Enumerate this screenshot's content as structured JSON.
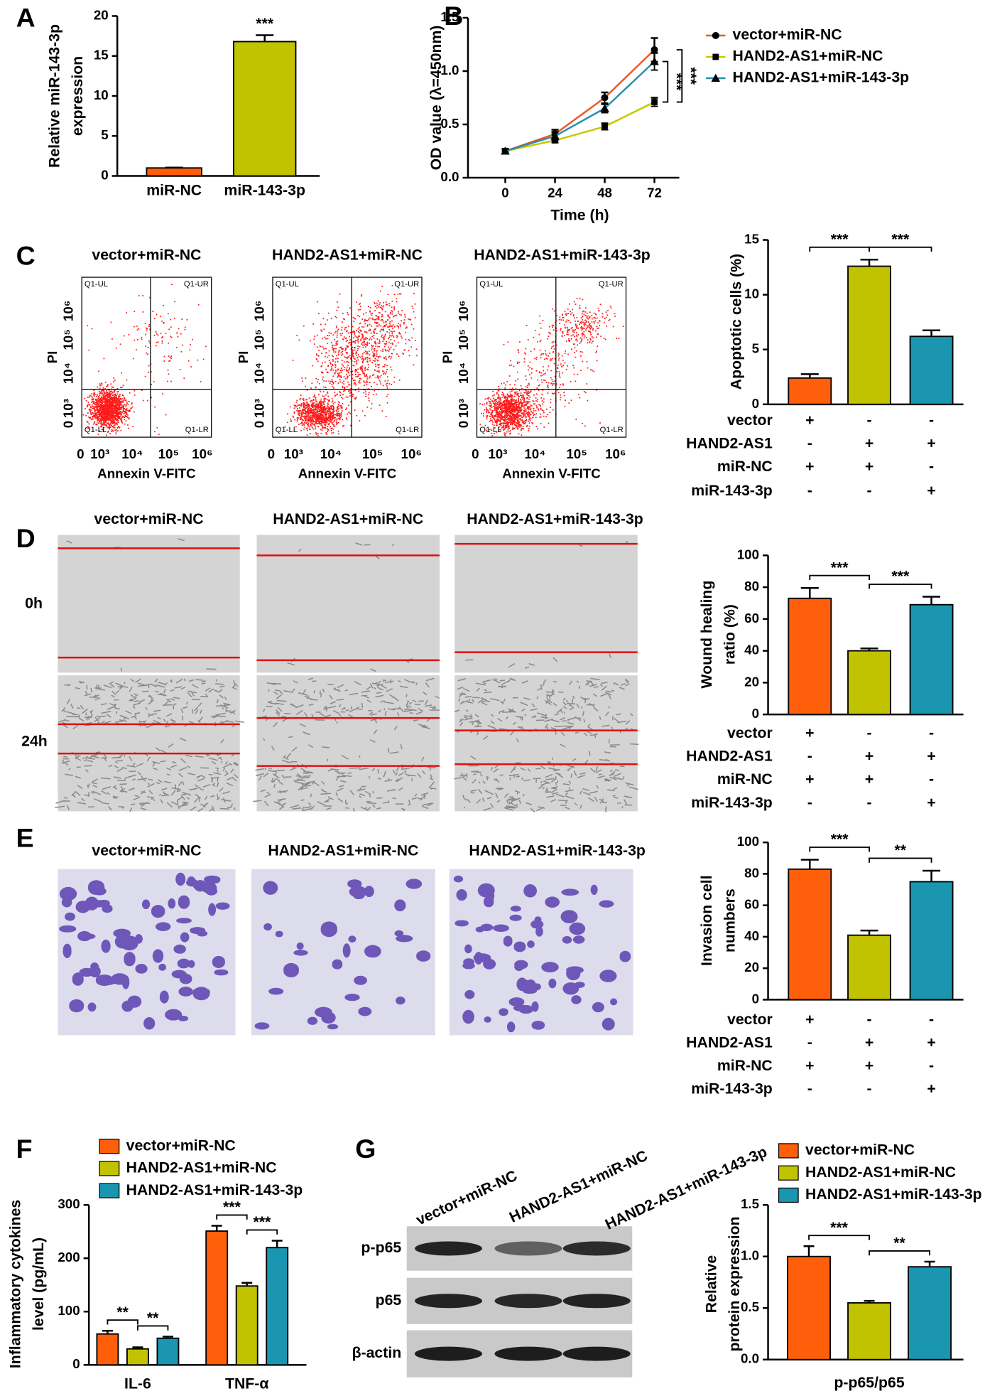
{
  "panel_letters": [
    "A",
    "B",
    "C",
    "D",
    "E",
    "F",
    "G"
  ],
  "flow": {
    "titles": [
      "vector+miR-NC",
      "HAND2-AS1+miR-NC",
      "HAND2-AS1+miR-143-3p"
    ],
    "xlabel": "Annexin V-FITC",
    "ylabel": "PI",
    "tick_labels": [
      "0",
      "10³",
      "10⁴",
      "10⁵",
      "10⁶"
    ],
    "quadrants": [
      "Q1-UL",
      "Q1-UR",
      "Q1-LL",
      "Q1-LR"
    ]
  },
  "wound": {
    "titles": [
      "vector+miR-NC",
      "HAND2-AS1+miR-NC",
      "HAND2-AS1+miR-143-3p"
    ],
    "times": [
      "0h",
      "24h"
    ]
  },
  "invasion": {
    "titles": [
      "vector+miR-NC",
      "HAND2-AS1+miR-NC",
      "HAND2-AS1+miR-143-3p"
    ]
  },
  "blot": {
    "lanes": [
      "vector+miR-NC",
      "HAND2-AS1+miR-NC",
      "HAND2-AS1+miR-143-3p"
    ],
    "rows": [
      "p-p65",
      "p65",
      "β-actin"
    ]
  },
  "chart_data": [
    {
      "type": "bar",
      "ylabel": [
        "Relative miR-143-3p",
        "expression"
      ],
      "categories": [
        "miR-NC",
        "miR-143-3p"
      ],
      "values": [
        1.0,
        16.8
      ],
      "errors": [
        0.05,
        0.8
      ],
      "colors": [
        "#ff5f0a",
        "#c2c300"
      ],
      "ylim": [
        0,
        20
      ],
      "yticks": [
        0,
        5,
        10,
        15,
        20
      ],
      "significance": [
        "***"
      ]
    },
    {
      "type": "line",
      "xlabel": "Time (h)",
      "ylabel": "OD value (λ=450nm)",
      "x": [
        0,
        24,
        48,
        72
      ],
      "xlim": [
        -18,
        84
      ],
      "xticks": [
        0,
        24,
        48,
        72
      ],
      "ylim": [
        0,
        1.5
      ],
      "yticks": [
        {
          "value": 0,
          "label": "0.0"
        },
        {
          "value": 0.5,
          "label": "0.5"
        },
        {
          "value": 1,
          "label": "1.0"
        },
        {
          "value": 1.5,
          "label": "1.5"
        }
      ],
      "series": [
        {
          "name": "vector+miR-NC",
          "color": "#ec5a26",
          "values": [
            0.25,
            0.41,
            0.75,
            1.2
          ],
          "errors": [
            0.02,
            0.04,
            0.05,
            0.11
          ]
        },
        {
          "name": "HAND2-AS1+miR-NC",
          "color": "#c8c800",
          "values": [
            0.25,
            0.35,
            0.48,
            0.71
          ],
          "errors": [
            0.02,
            0.02,
            0.03,
            0.04
          ]
        },
        {
          "name": "HAND2-AS1+miR-143-3p",
          "color": "#2a8fb0",
          "values": [
            0.25,
            0.39,
            0.65,
            1.09
          ],
          "errors": [
            0.02,
            0.04,
            0.04,
            0.08
          ]
        }
      ],
      "significance": [
        "***",
        "***"
      ]
    },
    {
      "type": "bar",
      "ylabel": [
        "Apoptotic cells (%)"
      ],
      "values": [
        2.4,
        12.6,
        6.2
      ],
      "errors": [
        0.35,
        0.6,
        0.55
      ],
      "colors": [
        "#ff5f0a",
        "#c2c300",
        "#1a96b0"
      ],
      "ylim": [
        0,
        15
      ],
      "yticks": [
        0,
        5,
        10,
        15
      ],
      "conditions": {
        "rows": [
          "vector",
          "HAND2-AS1",
          "miR-NC",
          "miR-143-3p"
        ],
        "signs": [
          [
            "+",
            "-",
            "-"
          ],
          [
            "-",
            "+",
            "+"
          ],
          [
            "+",
            "+",
            "-"
          ],
          [
            "-",
            "-",
            "+"
          ]
        ]
      },
      "significance": [
        "***",
        "***"
      ]
    },
    {
      "type": "bar",
      "ylabel": [
        "Wound healing",
        "ratio (%)"
      ],
      "values": [
        73,
        40,
        69
      ],
      "errors": [
        6.5,
        1.5,
        5
      ],
      "colors": [
        "#ff5f0a",
        "#c2c300",
        "#1a96b0"
      ],
      "ylim": [
        0,
        100
      ],
      "yticks": [
        0,
        20,
        40,
        60,
        80,
        100
      ],
      "conditions": {
        "rows": [
          "vector",
          "HAND2-AS1",
          "miR-NC",
          "miR-143-3p"
        ],
        "signs": [
          [
            "+",
            "-",
            "-"
          ],
          [
            "-",
            "+",
            "+"
          ],
          [
            "+",
            "+",
            "-"
          ],
          [
            "-",
            "-",
            "+"
          ]
        ]
      },
      "significance": [
        "***",
        "***"
      ]
    },
    {
      "type": "bar",
      "ylabel": [
        "Invasion cell",
        "numbers"
      ],
      "values": [
        83,
        41,
        75
      ],
      "errors": [
        6,
        3,
        7
      ],
      "colors": [
        "#ff5f0a",
        "#c2c300",
        "#1a96b0"
      ],
      "ylim": [
        0,
        100
      ],
      "yticks": [
        0,
        20,
        40,
        60,
        80,
        100
      ],
      "conditions": {
        "rows": [
          "vector",
          "HAND2-AS1",
          "miR-NC",
          "miR-143-3p"
        ],
        "signs": [
          [
            "+",
            "-",
            "-"
          ],
          [
            "-",
            "+",
            "+"
          ],
          [
            "+",
            "+",
            "-"
          ],
          [
            "-",
            "-",
            "+"
          ]
        ]
      },
      "significance": [
        "***",
        "**"
      ]
    },
    {
      "type": "bar",
      "ylabel": [
        "Inflammatory cytokines",
        "level (pg/mL)"
      ],
      "categories": [
        "IL-6",
        "TNF-α"
      ],
      "ylim": [
        0,
        300
      ],
      "yticks": [
        0,
        100,
        200,
        300
      ],
      "series": [
        {
          "name": "vector+miR-NC",
          "color": "#ff5f0a",
          "values": [
            58,
            251
          ],
          "errors": [
            6,
            10
          ]
        },
        {
          "name": "HAND2-AS1+miR-NC",
          "color": "#c2c300",
          "values": [
            30,
            148
          ],
          "errors": [
            3,
            6
          ]
        },
        {
          "name": "HAND2-AS1+miR-143-3p",
          "color": "#1a96b0",
          "values": [
            50,
            220
          ],
          "errors": [
            3,
            13
          ]
        }
      ],
      "significance": [
        "**",
        "**",
        "***",
        "***"
      ]
    },
    {
      "type": "bar",
      "ylabel": [
        "Relative",
        "protein expression"
      ],
      "categories": [
        "p-p65/p65"
      ],
      "ylim": [
        0,
        1.5
      ],
      "yticks": [
        {
          "value": 0,
          "label": "0.0"
        },
        {
          "value": 0.5,
          "label": "0.5"
        },
        {
          "value": 1,
          "label": "1.0"
        },
        {
          "value": 1.5,
          "label": "1.5"
        }
      ],
      "series": [
        {
          "name": "vector+miR-NC",
          "color": "#ff5f0a",
          "values": [
            1.0
          ],
          "errors": [
            0.1
          ]
        },
        {
          "name": "HAND2-AS1+miR-NC",
          "color": "#c2c300",
          "values": [
            0.55
          ],
          "errors": [
            0.02
          ]
        },
        {
          "name": "HAND2-AS1+miR-143-3p",
          "color": "#1a96b0",
          "values": [
            0.9
          ],
          "errors": [
            0.05
          ]
        }
      ],
      "significance": [
        "***",
        "**"
      ]
    }
  ]
}
